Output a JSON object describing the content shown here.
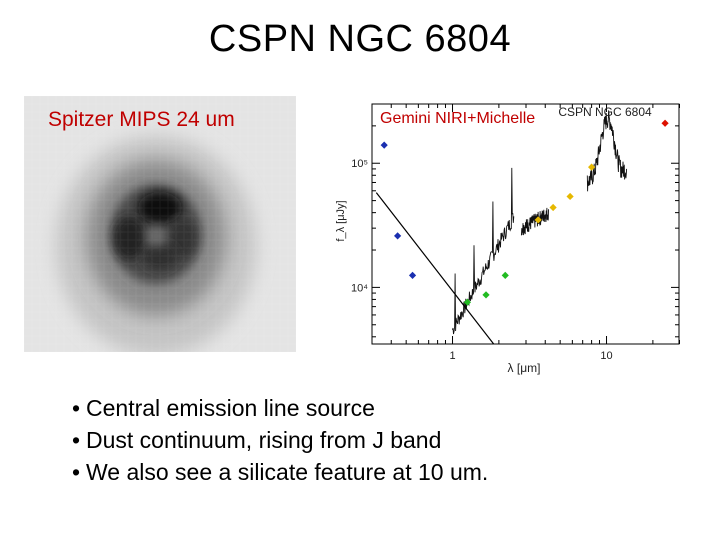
{
  "slide": {
    "title": "CSPN NGC 6804",
    "left_panel_label": "Spitzer MIPS 24 um",
    "right_panel_label": "Gemini NIRI+Michelle",
    "bullets": [
      "Central emission line source",
      "Dust continuum, rising from J band",
      "We also see a silicate feature at 10 um."
    ]
  },
  "chart_data": {
    "type": "scatter",
    "title": "CSPN NGC 6804",
    "xlabel": "λ [μm]",
    "ylabel": "f_λ [μJy]",
    "xscale": "log",
    "yscale": "log",
    "x_tick_labels": [
      "1",
      "10"
    ],
    "y_tick_labels": [
      "10⁴",
      "10⁵"
    ],
    "xlim": [
      0.3,
      30
    ],
    "ylim": [
      3500,
      300000
    ],
    "series": [
      {
        "color": "#1a2fb0",
        "x": [
          0.36,
          0.44,
          0.55
        ],
        "y": [
          140000,
          26000,
          12500
        ]
      },
      {
        "color": "#22bb22",
        "x": [
          1.25,
          1.65,
          2.2
        ],
        "y": [
          7600,
          8700,
          12500
        ]
      },
      {
        "color": "#e6b800",
        "x": [
          3.6,
          4.5,
          5.8,
          8.0
        ],
        "y": [
          35000,
          44000,
          54000,
          93000
        ]
      },
      {
        "color": "#dd1100",
        "x": [
          24
        ],
        "y": [
          210000
        ]
      }
    ],
    "lines": [
      {
        "name_hint": "stellar Rayleigh-Jeans tail",
        "x": [
          0.32,
          1.85
        ],
        "y": [
          58000,
          3500
        ]
      }
    ],
    "spectra": [
      {
        "x_range": [
          1.0,
          2.5
        ],
        "shape": "noisy rising NIR spectrum"
      },
      {
        "x_range": [
          2.8,
          4.2
        ],
        "shape": "noisy L-band spectrum"
      },
      {
        "x_range": [
          7.5,
          13.5
        ],
        "shape": "mid-IR spectrum with silicate feature peaking near 10 um"
      }
    ],
    "grid": false
  },
  "colors": {
    "label_red": "#c00000",
    "mips_bg": "#e6e6e6"
  }
}
